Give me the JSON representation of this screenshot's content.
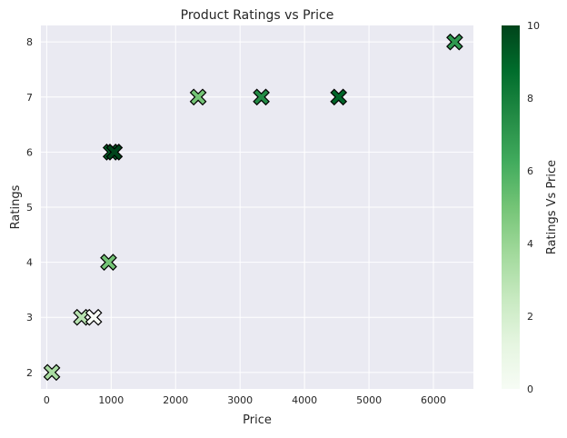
{
  "chart_data": {
    "type": "scatter",
    "title": "Product Ratings vs Price",
    "xlabel": "Price",
    "ylabel": "Ratings",
    "xlim": [
      -90,
      6620
    ],
    "ylim": [
      1.7,
      8.3
    ],
    "xticks": [
      0,
      1000,
      2000,
      3000,
      4000,
      5000,
      6000
    ],
    "yticks": [
      2,
      3,
      4,
      5,
      6,
      7,
      8
    ],
    "grid": true,
    "marker": "X",
    "colormap": "Greens",
    "colorbar": {
      "label": "Ratings Vs Price",
      "range": [
        0,
        10
      ],
      "ticks": [
        0,
        2,
        4,
        6,
        8,
        10
      ]
    },
    "points": [
      {
        "x": 80,
        "y": 2,
        "c": 3.5
      },
      {
        "x": 540,
        "y": 3,
        "c": 3
      },
      {
        "x": 730,
        "y": 3,
        "c": 0
      },
      {
        "x": 960,
        "y": 4,
        "c": 5
      },
      {
        "x": 1000,
        "y": 6,
        "c": 9
      },
      {
        "x": 1050,
        "y": 6,
        "c": 10
      },
      {
        "x": 2350,
        "y": 7,
        "c": 5
      },
      {
        "x": 3330,
        "y": 7,
        "c": 7.5
      },
      {
        "x": 4530,
        "y": 7,
        "c": 9
      },
      {
        "x": 6330,
        "y": 8,
        "c": 7
      }
    ],
    "colors": {
      "plot_background": "#eaeaf2",
      "grid": "#ffffff",
      "marker_edge": "#000000"
    }
  }
}
